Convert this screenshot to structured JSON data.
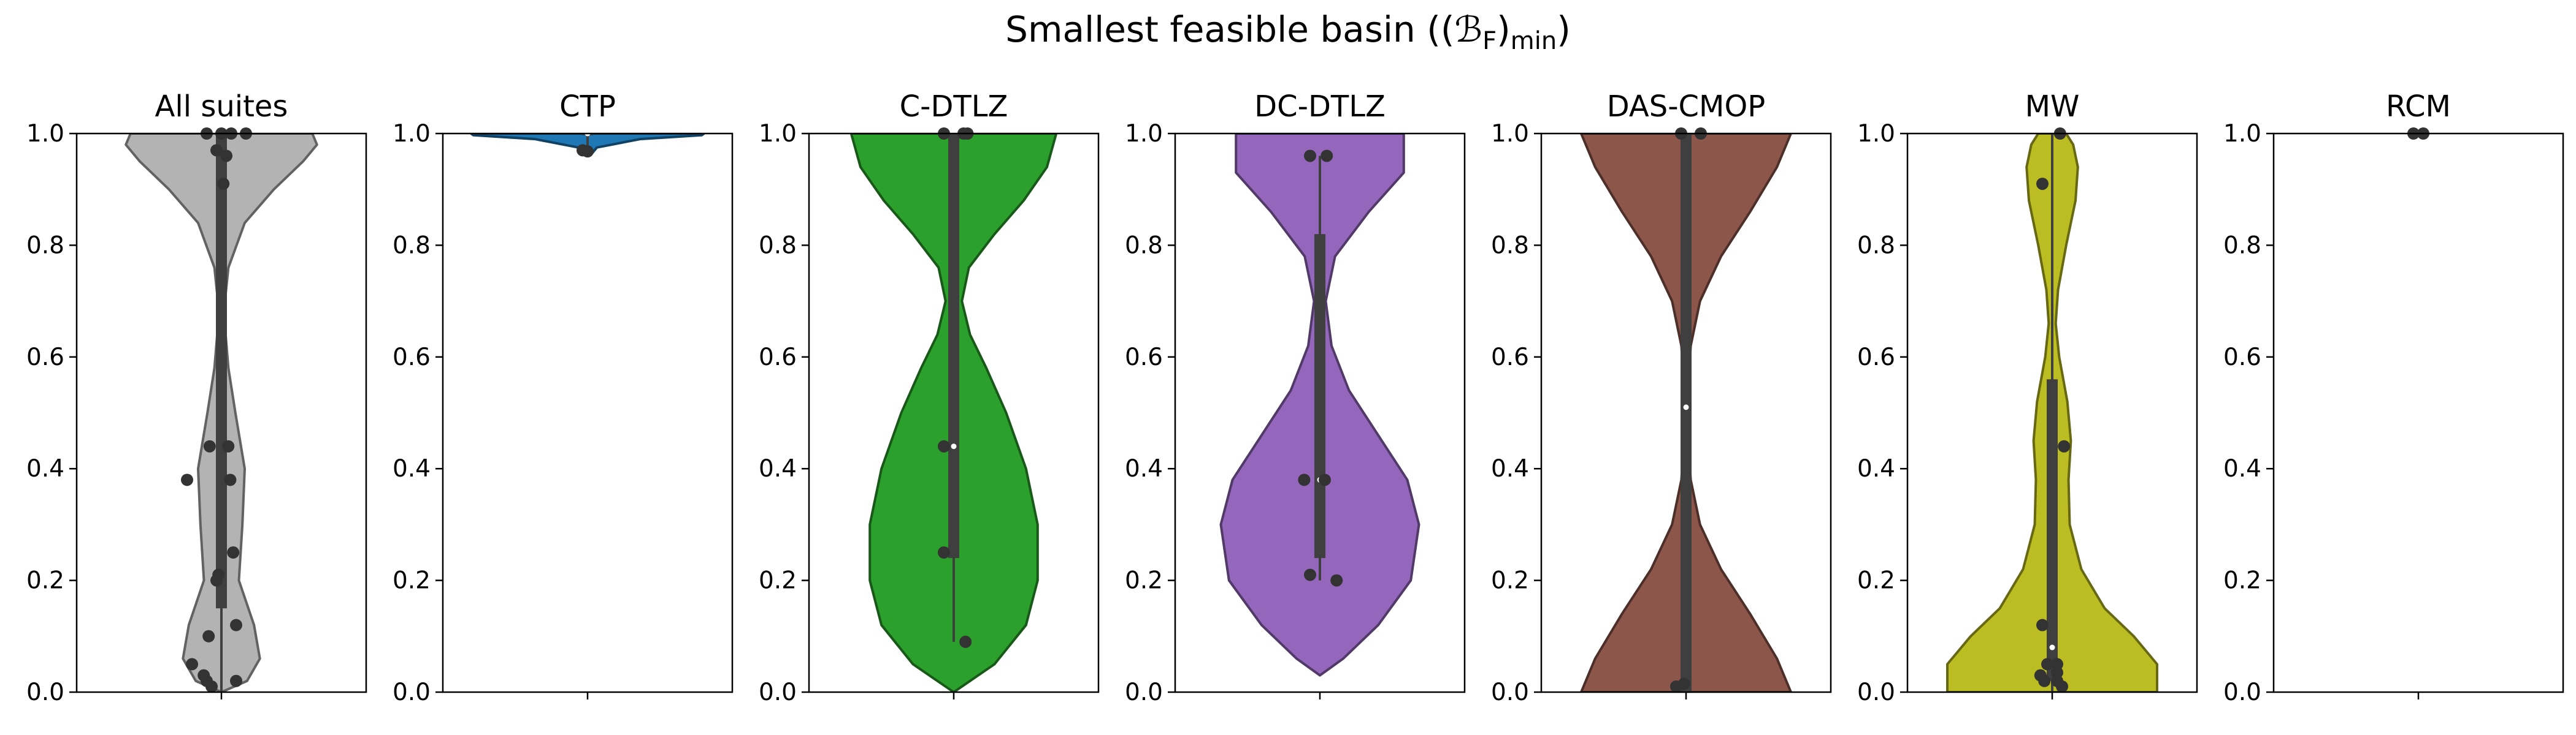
{
  "figure": {
    "suptitle": "Smallest feasible basin ((",
    "suptitle_symbol": "ℬ",
    "suptitle_sub1": "F",
    "suptitle_mid": ")",
    "suptitle_sub2": "min",
    "suptitle_end": ")"
  },
  "chart_data": [
    {
      "type": "violin",
      "title": "All suites",
      "color": "#b3b3b3",
      "ylim": [
        0,
        1
      ],
      "yticks": [
        "0.0",
        "0.2",
        "0.4",
        "0.6",
        "0.8",
        "1.0"
      ],
      "density": [
        [
          0.0,
          0.0
        ],
        [
          0.02,
          0.22
        ],
        [
          0.06,
          0.33
        ],
        [
          0.12,
          0.28
        ],
        [
          0.2,
          0.15
        ],
        [
          0.3,
          0.18
        ],
        [
          0.4,
          0.2
        ],
        [
          0.5,
          0.12
        ],
        [
          0.58,
          0.06
        ],
        [
          0.68,
          0.02
        ],
        [
          0.76,
          0.06
        ],
        [
          0.84,
          0.2
        ],
        [
          0.9,
          0.45
        ],
        [
          0.95,
          0.7
        ],
        [
          0.98,
          0.82
        ],
        [
          1.0,
          0.78
        ]
      ],
      "quartiles": [
        0.15,
        1.0
      ],
      "whisker": [
        0.0,
        1.0
      ],
      "median": 1.0,
      "points": [
        [
          0.0,
          1.0
        ],
        [
          0.1,
          1.0
        ],
        [
          0.25,
          1.0
        ],
        [
          -0.15,
          1.0
        ],
        [
          -0.05,
          0.97
        ],
        [
          0.05,
          0.96
        ],
        [
          0.02,
          0.91
        ],
        [
          -0.12,
          0.44
        ],
        [
          0.07,
          0.44
        ],
        [
          -0.35,
          0.38
        ],
        [
          0.09,
          0.38
        ],
        [
          0.12,
          0.25
        ],
        [
          -0.03,
          0.21
        ],
        [
          -0.05,
          0.2
        ],
        [
          0.15,
          0.12
        ],
        [
          -0.13,
          0.1
        ],
        [
          -0.3,
          0.05
        ],
        [
          -0.18,
          0.03
        ],
        [
          -0.15,
          0.02
        ],
        [
          0.15,
          0.02
        ],
        [
          -0.1,
          0.01
        ]
      ]
    },
    {
      "type": "violin",
      "title": "CTP",
      "color": "#1f77b4",
      "ylim": [
        0,
        1
      ],
      "yticks": [
        "0.0",
        "0.2",
        "0.4",
        "0.6",
        "0.8",
        "1.0"
      ],
      "density": [
        [
          0.965,
          0.04
        ],
        [
          0.975,
          0.08
        ],
        [
          0.99,
          0.45
        ],
        [
          0.997,
          0.98
        ],
        [
          1.0,
          1.0
        ]
      ],
      "quartiles": [
        0.997,
        1.0
      ],
      "whisker": [
        0.97,
        1.0
      ],
      "median": 1.0,
      "points": [
        [
          -0.05,
          0.97
        ],
        [
          0.0,
          0.968
        ]
      ]
    },
    {
      "type": "violin",
      "title": "C-DTLZ",
      "color": "#2ca02c",
      "ylim": [
        0,
        1
      ],
      "yticks": [
        "0.0",
        "0.2",
        "0.4",
        "0.6",
        "0.8",
        "1.0"
      ],
      "density": [
        [
          0.0,
          0.0
        ],
        [
          0.05,
          0.35
        ],
        [
          0.12,
          0.62
        ],
        [
          0.2,
          0.72
        ],
        [
          0.3,
          0.72
        ],
        [
          0.4,
          0.62
        ],
        [
          0.5,
          0.45
        ],
        [
          0.58,
          0.28
        ],
        [
          0.64,
          0.14
        ],
        [
          0.7,
          0.07
        ],
        [
          0.76,
          0.13
        ],
        [
          0.82,
          0.35
        ],
        [
          0.88,
          0.6
        ],
        [
          0.94,
          0.8
        ],
        [
          1.0,
          0.88
        ]
      ],
      "quartiles": [
        0.24,
        1.0
      ],
      "whisker": [
        0.09,
        1.0
      ],
      "median": 0.44,
      "points": [
        [
          -0.1,
          1.0
        ],
        [
          0.1,
          1.0
        ],
        [
          0.14,
          1.0
        ],
        [
          -0.1,
          0.44
        ],
        [
          -0.1,
          0.25
        ],
        [
          0.12,
          0.09
        ]
      ]
    },
    {
      "type": "violin",
      "title": "DC-DTLZ",
      "color": "#9467bd",
      "ylim": [
        0,
        1
      ],
      "yticks": [
        "0.0",
        "0.2",
        "0.4",
        "0.6",
        "0.8",
        "1.0"
      ],
      "density": [
        [
          0.03,
          0.0
        ],
        [
          0.06,
          0.2
        ],
        [
          0.12,
          0.5
        ],
        [
          0.2,
          0.78
        ],
        [
          0.3,
          0.85
        ],
        [
          0.38,
          0.75
        ],
        [
          0.46,
          0.5
        ],
        [
          0.54,
          0.25
        ],
        [
          0.62,
          0.1
        ],
        [
          0.7,
          0.05
        ],
        [
          0.78,
          0.13
        ],
        [
          0.86,
          0.42
        ],
        [
          0.93,
          0.72
        ],
        [
          1.0,
          0.72
        ]
      ],
      "quartiles": [
        0.24,
        0.82
      ],
      "whisker": [
        0.2,
        0.96
      ],
      "median": 0.38,
      "points": [
        [
          -0.1,
          0.96
        ],
        [
          0.07,
          0.96
        ],
        [
          -0.16,
          0.38
        ],
        [
          0.05,
          0.38
        ],
        [
          -0.1,
          0.21
        ],
        [
          0.17,
          0.2
        ]
      ]
    },
    {
      "type": "violin",
      "title": "DAS-CMOP",
      "color": "#8c564b",
      "ylim": [
        0,
        1
      ],
      "yticks": [
        "0.0",
        "0.2",
        "0.4",
        "0.6",
        "0.8",
        "1.0"
      ],
      "density": [
        [
          0.0,
          0.9
        ],
        [
          0.06,
          0.78
        ],
        [
          0.14,
          0.55
        ],
        [
          0.22,
          0.3
        ],
        [
          0.3,
          0.12
        ],
        [
          0.38,
          0.04
        ],
        [
          0.45,
          0.02
        ],
        [
          0.5,
          0.02
        ],
        [
          0.55,
          0.02
        ],
        [
          0.62,
          0.04
        ],
        [
          0.7,
          0.12
        ],
        [
          0.78,
          0.3
        ],
        [
          0.86,
          0.55
        ],
        [
          0.94,
          0.78
        ],
        [
          1.0,
          0.9
        ]
      ],
      "quartiles": [
        0.0,
        1.0
      ],
      "whisker": [
        0.0,
        1.0
      ],
      "median": 0.51,
      "points": [
        [
          -0.05,
          1.0
        ],
        [
          0.15,
          1.0
        ],
        [
          -0.1,
          0.01
        ],
        [
          -0.02,
          0.015
        ]
      ]
    },
    {
      "type": "violin",
      "title": "MW",
      "color": "#bcbd22",
      "ylim": [
        0,
        1
      ],
      "yticks": [
        "0.0",
        "0.2",
        "0.4",
        "0.6",
        "0.8",
        "1.0"
      ],
      "density": [
        [
          0.0,
          0.9
        ],
        [
          0.05,
          0.9
        ],
        [
          0.1,
          0.7
        ],
        [
          0.15,
          0.45
        ],
        [
          0.22,
          0.25
        ],
        [
          0.3,
          0.15
        ],
        [
          0.38,
          0.14
        ],
        [
          0.45,
          0.16
        ],
        [
          0.52,
          0.13
        ],
        [
          0.6,
          0.06
        ],
        [
          0.66,
          0.03
        ],
        [
          0.72,
          0.05
        ],
        [
          0.8,
          0.12
        ],
        [
          0.88,
          0.2
        ],
        [
          0.94,
          0.22
        ],
        [
          0.98,
          0.18
        ],
        [
          1.0,
          0.12
        ]
      ],
      "quartiles": [
        0.02,
        0.56
      ],
      "whisker": [
        0.0,
        1.0
      ],
      "median": 0.08,
      "points": [
        [
          0.08,
          1.0
        ],
        [
          -0.1,
          0.91
        ],
        [
          0.12,
          0.44
        ],
        [
          -0.1,
          0.12
        ],
        [
          0.05,
          0.05
        ],
        [
          -0.05,
          0.05
        ],
        [
          0.05,
          0.035
        ],
        [
          -0.12,
          0.03
        ],
        [
          -0.08,
          0.02
        ],
        [
          0.05,
          0.02
        ],
        [
          0.1,
          0.01
        ]
      ]
    },
    {
      "type": "violin",
      "title": "RCM",
      "color": "#17becf",
      "ylim": [
        0,
        1
      ],
      "yticks": [
        "0.0",
        "0.2",
        "0.4",
        "0.6",
        "0.8",
        "1.0"
      ],
      "density": [],
      "quartiles": null,
      "whisker": null,
      "median": null,
      "points": [
        [
          -0.05,
          1.0
        ],
        [
          0.05,
          1.0
        ]
      ]
    }
  ]
}
